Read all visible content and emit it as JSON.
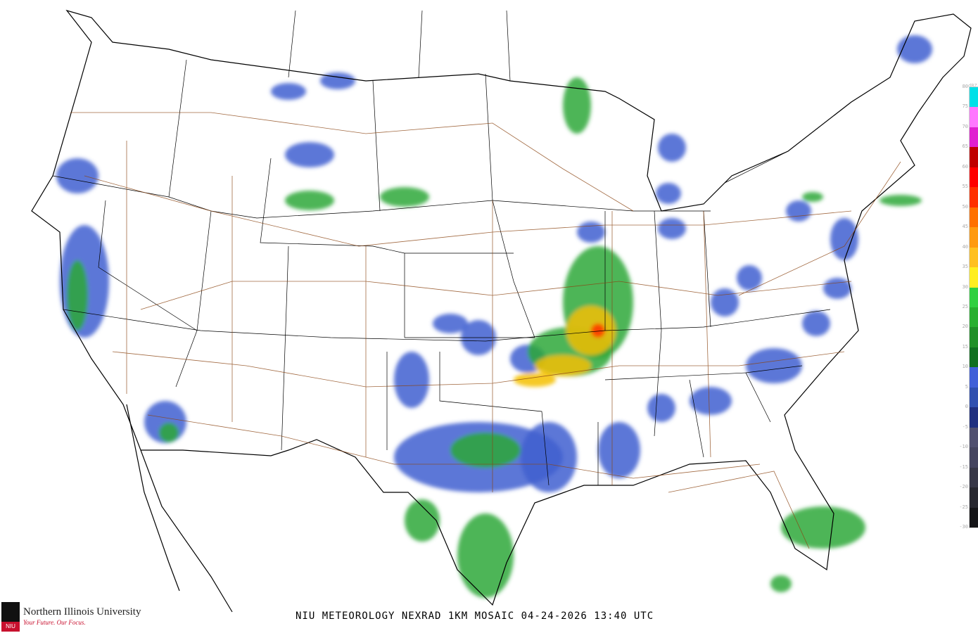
{
  "title": "NIU METEOROLOGY NEXRAD 1KM MOSAIC  04-24-2026 13:40 UTC",
  "logo": {
    "name": "Northern Illinois University",
    "tagline": "Your Future. Our Focus.",
    "mark": "NIU"
  },
  "legend": {
    "unit": "dBZ",
    "ticks": [
      "80",
      "75",
      "70",
      "65",
      "60",
      "55",
      "50",
      "45",
      "40",
      "35",
      "30",
      "25",
      "20",
      "15",
      "10",
      "5",
      "0",
      "-5",
      "-10",
      "-15",
      "-20",
      "-25",
      "-30"
    ],
    "colors": [
      {
        "from": 75,
        "to": 80,
        "color": "#00e0e8"
      },
      {
        "from": 70,
        "to": 75,
        "color": "#ff77ff"
      },
      {
        "from": 65,
        "to": 70,
        "color": "#e020d0"
      },
      {
        "from": 60,
        "to": 65,
        "color": "#c00000"
      },
      {
        "from": 55,
        "to": 60,
        "color": "#ff0000"
      },
      {
        "from": 50,
        "to": 55,
        "color": "#ff3000"
      },
      {
        "from": 45,
        "to": 50,
        "color": "#ff7000"
      },
      {
        "from": 40,
        "to": 45,
        "color": "#ff9a10"
      },
      {
        "from": 35,
        "to": 40,
        "color": "#ffc020"
      },
      {
        "from": 30,
        "to": 35,
        "color": "#ffee20"
      },
      {
        "from": 25,
        "to": 30,
        "color": "#30d040"
      },
      {
        "from": 20,
        "to": 25,
        "color": "#28b030"
      },
      {
        "from": 15,
        "to": 20,
        "color": "#209028"
      },
      {
        "from": 10,
        "to": 15,
        "color": "#107020"
      },
      {
        "from": 5,
        "to": 10,
        "color": "#4060d8"
      },
      {
        "from": 0,
        "to": 5,
        "color": "#3050b0"
      },
      {
        "from": -5,
        "to": 0,
        "color": "#203080"
      },
      {
        "from": -10,
        "to": -5,
        "color": "#505070"
      },
      {
        "from": -15,
        "to": -10,
        "color": "#454560"
      },
      {
        "from": -20,
        "to": -15,
        "color": "#383848"
      },
      {
        "from": -25,
        "to": -20,
        "color": "#282830"
      },
      {
        "from": -30,
        "to": -25,
        "color": "#151518"
      }
    ]
  },
  "colors": {
    "light_echo": "#3f5fd0",
    "moderate_echo": "#2ea83a",
    "heavy_echo": "#f5c000",
    "intense_echo": "#ff3000",
    "highways": "#8b4513",
    "borders": "#000000"
  }
}
